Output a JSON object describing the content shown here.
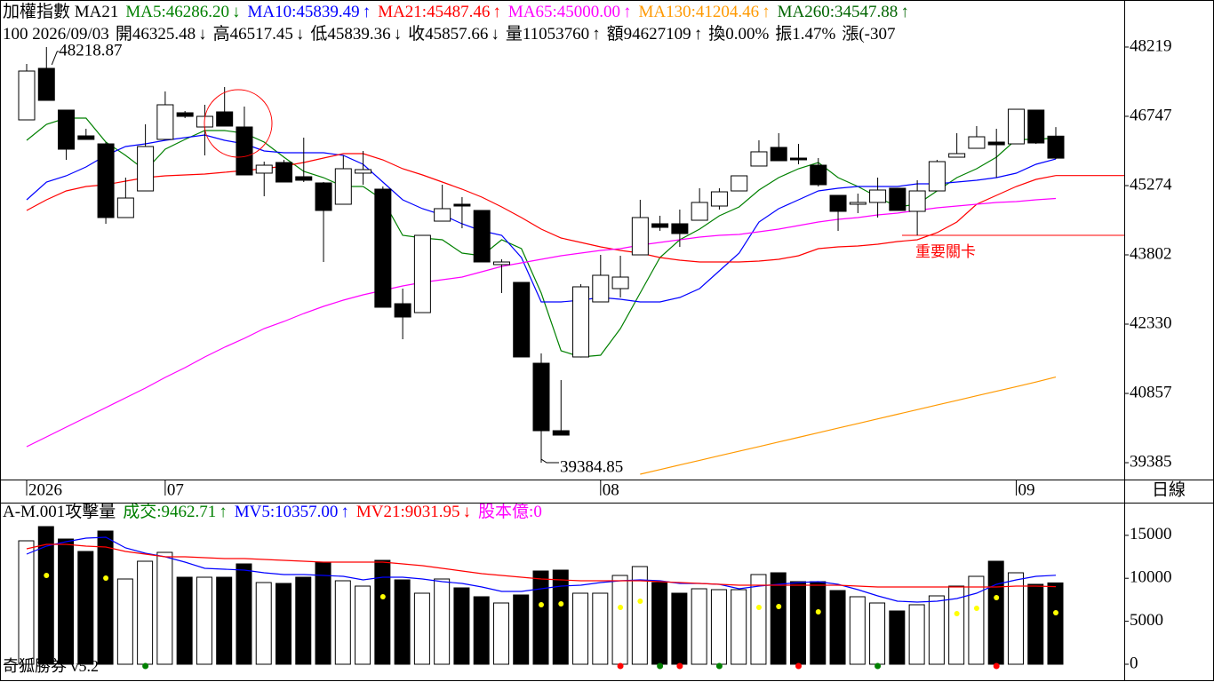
{
  "chart_data": [
    {
      "type": "candlestick",
      "title": "加權指數 MA21",
      "info": [
        {
          "text": "100 2026/09/03"
        },
        {
          "text": "開46325.48",
          "arrow": "↓"
        },
        {
          "text": "高46517.45",
          "arrow": "↓"
        },
        {
          "text": "低45839.36",
          "arrow": "↓"
        },
        {
          "text": "收45857.66",
          "arrow": "↓"
        },
        {
          "text": "量11053760",
          "arrow": "↑"
        },
        {
          "text": "額94627109",
          "arrow": "↑"
        },
        {
          "text": "換0.00%"
        },
        {
          "text": "振1.47%"
        },
        {
          "text": "漲(-307"
        }
      ],
      "categories": [
        "2026",
        null,
        null,
        null,
        null,
        null,
        null,
        "07",
        null,
        null,
        null,
        null,
        null,
        null,
        null,
        null,
        null,
        null,
        null,
        null,
        null,
        null,
        null,
        null,
        null,
        null,
        null,
        null,
        null,
        "08",
        null,
        null,
        null,
        null,
        null,
        null,
        null,
        null,
        null,
        null,
        null,
        null,
        null,
        null,
        null,
        null,
        null,
        null,
        null,
        null,
        "09",
        null,
        null
      ],
      "x_label": "日線",
      "open": [
        46671,
        47766,
        46879,
        46331,
        46161,
        44595,
        45161,
        46256,
        46822,
        46520,
        46841,
        46520,
        45539,
        45765,
        45463,
        45331,
        44878,
        45539,
        45199,
        42764,
        42575,
        44519,
        44878,
        44746,
        43595,
        43217,
        41499,
        40065,
        41632,
        42802,
        43085,
        43802,
        44463,
        44463,
        44538,
        44840,
        45161,
        45690,
        46086,
        45859,
        45708,
        45067,
        44878,
        44916,
        45218,
        44727,
        45161,
        45878,
        46067,
        46199,
        46161,
        46879,
        46325.48
      ],
      "high": [
        47860,
        48218.87,
        46879,
        46482,
        46199,
        45444,
        46577,
        47275,
        46860,
        46992,
        47369,
        46954,
        45784,
        45822,
        46293,
        45350,
        45916,
        46010,
        45255,
        43085,
        44217,
        45293,
        45029,
        44746,
        43708,
        43217,
        41707,
        41141,
        43179,
        43802,
        43783,
        44972,
        44633,
        44765,
        45218,
        45218,
        45482,
        46237,
        46388,
        46161,
        45859,
        45067,
        45104,
        45444,
        45218,
        45388,
        45822,
        46388,
        46539,
        46482,
        46897,
        46879,
        46517.45
      ],
      "low": [
        46671,
        47086,
        45822,
        46256,
        44463,
        44595,
        45161,
        46256,
        46709,
        45916,
        46539,
        45501,
        45048,
        45350,
        45350,
        43651,
        44878,
        45293,
        42689,
        42009,
        42575,
        44519,
        44368,
        43651,
        42991,
        41632,
        39384.85,
        39971,
        41632,
        42802,
        42896,
        43802,
        44312,
        43972,
        44538,
        44765,
        45161,
        45690,
        45803,
        45727,
        45255,
        44312,
        44689,
        44595,
        44746,
        44217,
        45161,
        45878,
        46067,
        45444,
        46161,
        46161,
        45839.36
      ],
      "close": [
        47709,
        47086,
        46048,
        46256,
        44595,
        45010,
        46105,
        46992,
        46746,
        46746,
        46539,
        45501,
        45708,
        45350,
        45388,
        44746,
        45633,
        45614,
        42689,
        42481,
        44217,
        44784,
        44840,
        43651,
        43651,
        41632,
        40065,
        39971,
        43123,
        43368,
        43330,
        44595,
        44387,
        44255,
        44916,
        45142,
        45482,
        45992,
        45803,
        45822,
        45293,
        44727,
        44916,
        45180,
        44746,
        45161,
        45784,
        45954,
        46312,
        46142,
        46897,
        46180,
        45857.66
      ],
      "up_color": "#ffffff",
      "down_color": "#000000",
      "series": [
        {
          "name": "MA5:46286.20",
          "arrow": "↓",
          "color": "#008000",
          "values": [
            46237,
            46577,
            46709,
            46709,
            46199,
            45916,
            45595,
            46048,
            46256,
            46444,
            46444,
            46388,
            46199,
            45878,
            45576,
            45444,
            45255,
            45255,
            44972,
            44217,
            44161,
            44123,
            43840,
            43783,
            44123,
            43934,
            42991,
            41764,
            41632,
            41669,
            42236,
            42991,
            43746,
            44123,
            44349,
            44633,
            44821,
            45180,
            45444,
            45633,
            45765,
            45444,
            45255,
            45029,
            44821,
            44878,
            45161,
            45444,
            45633,
            45878,
            46256,
            46256,
            46286.2
          ]
        },
        {
          "name": "MA10:45839.49",
          "arrow": "↑",
          "color": "#0000ff",
          "values": [
            44972,
            45350,
            45482,
            45671,
            45916,
            46105,
            46161,
            46237,
            46293,
            46350,
            46237,
            46161,
            46010,
            45973,
            45973,
            45973,
            45916,
            45727,
            45350,
            44972,
            44784,
            44651,
            44463,
            44312,
            44217,
            43746,
            42802,
            42802,
            42840,
            42896,
            42858,
            42802,
            42802,
            42896,
            43085,
            43462,
            43840,
            44500,
            44784,
            44972,
            45161,
            45218,
            45255,
            45255,
            45255,
            45312,
            45312,
            45350,
            45388,
            45444,
            45539,
            45727,
            45839.49
          ]
        },
        {
          "name": "MA21:45487.46",
          "arrow": "↑",
          "color": "#ff0000",
          "extend": true,
          "values": [
            44746,
            44972,
            45161,
            45255,
            45293,
            45369,
            45444,
            45482,
            45501,
            45520,
            45557,
            45595,
            45633,
            45690,
            45765,
            45859,
            45954,
            45954,
            45822,
            45633,
            45501,
            45350,
            45199,
            45029,
            44821,
            44595,
            44349,
            44161,
            44066,
            43972,
            43896,
            43840,
            43746,
            43689,
            43651,
            43651,
            43651,
            43670,
            43708,
            43783,
            43934,
            43972,
            43991,
            44029,
            44085,
            44123,
            44274,
            44500,
            44878,
            45067,
            45255,
            45406,
            45487.46
          ]
        },
        {
          "name": "MA65:45000.00",
          "arrow": "↑",
          "color": "#ff00ff",
          "values": [
            39725,
            39933,
            40141,
            40348,
            40556,
            40763,
            40971,
            41198,
            41405,
            41632,
            41839,
            42028,
            42236,
            42387,
            42556,
            42707,
            42840,
            42953,
            43047,
            43142,
            43217,
            43274,
            43330,
            43444,
            43557,
            43632,
            43708,
            43783,
            43840,
            43896,
            43934,
            44010,
            44066,
            44123,
            44180,
            44217,
            44236,
            44293,
            44349,
            44425,
            44500,
            44557,
            44595,
            44651,
            44689,
            44746,
            44802,
            44840,
            44878,
            44916,
            44935,
            44972,
            45000.0
          ]
        },
        {
          "name": "MA130:41204.46",
          "arrow": "↑",
          "color": "#ff9900",
          "values": [
            null,
            null,
            null,
            null,
            null,
            null,
            null,
            null,
            null,
            null,
            null,
            null,
            null,
            null,
            null,
            null,
            null,
            null,
            null,
            null,
            null,
            null,
            null,
            null,
            null,
            null,
            null,
            null,
            null,
            null,
            null,
            39140,
            39238,
            39336,
            39434,
            39532,
            39630,
            39728,
            39826,
            39924,
            40022,
            40120,
            40218,
            40316,
            40414,
            40512,
            40610,
            40708,
            40806,
            40904,
            41002,
            41100,
            41204.46
          ]
        },
        {
          "name": "MA260:34547.88",
          "arrow": "↑",
          "color": "#006400"
        }
      ],
      "annotations": [
        {
          "text": "重要關卡",
          "value": 44217,
          "color": "#ff0000"
        }
      ],
      "ylim": [
        39027,
        49219
      ],
      "yticks": [
        39385,
        40857,
        42330,
        43802,
        45274,
        46747,
        48219
      ]
    },
    {
      "type": "bar",
      "title": "A-M.001攻擊量",
      "name": "成交:9462.71",
      "arrow": "↑",
      "color": "#008000",
      "values": [
        14360,
        16013,
        14567,
        13120,
        15497,
        9918,
        11984,
        13017,
        10124,
        10124,
        10124,
        11674,
        9505,
        9401,
        10124,
        11881,
        9711,
        9091,
        12087,
        9814,
        8265,
        9918,
        8885,
        7852,
        7128,
        8058,
        10848,
        10951,
        8265,
        8265,
        10331,
        11364,
        9505,
        8265,
        8781,
        8678,
        8678,
        10434,
        10641,
        9608,
        9608,
        8575,
        7852,
        7128,
        6199,
        6922,
        7955,
        9091,
        10228,
        11984,
        10641,
        9298,
        9462.71
      ],
      "series": [
        {
          "name": "MV5:10357.00",
          "arrow": "↑",
          "color": "#0000ff",
          "values": [
            12810,
            13740,
            14257,
            14670,
            14773,
            13534,
            12914,
            12501,
            11881,
            11157,
            11054,
            10951,
            10641,
            10434,
            10434,
            10331,
            10228,
            9814,
            10124,
            10124,
            9918,
            9608,
            9401,
            8988,
            8471,
            8471,
            8781,
            9091,
            9195,
            9505,
            9711,
            9814,
            9711,
            9401,
            9401,
            9298,
            8781,
            9091,
            9298,
            9505,
            9608,
            9298,
            8678,
            7955,
            7335,
            7232,
            7335,
            7645,
            8265,
            9298,
            9814,
            10228,
            10357.0
          ]
        },
        {
          "name": "MV21:9031.95",
          "arrow": "↓",
          "color": "#ff0000",
          "values": [
            13430,
            13947,
            13947,
            13740,
            13637,
            13120,
            12810,
            12501,
            12501,
            12397,
            12294,
            12294,
            12191,
            12087,
            11984,
            11881,
            11881,
            11881,
            11881,
            11674,
            11467,
            11157,
            10848,
            10538,
            10331,
            10124,
            9918,
            9814,
            9711,
            9711,
            9711,
            9711,
            9608,
            9505,
            9401,
            9298,
            9195,
            9195,
            9195,
            9195,
            9195,
            9195,
            9091,
            8988,
            8988,
            8988,
            8988,
            8988,
            8988,
            8988,
            9091,
            9091,
            9031.95
          ]
        },
        {
          "name": "股本億:0",
          "color": "#ff00ff"
        }
      ],
      "markers": {
        "color": "#ffff00",
        "values": [
          null,
          10331,
          null,
          null,
          10021,
          null,
          null,
          null,
          null,
          null,
          null,
          null,
          null,
          null,
          null,
          null,
          null,
          null,
          7852,
          null,
          null,
          null,
          null,
          null,
          null,
          null,
          6922,
          7025,
          null,
          null,
          6612,
          7335,
          null,
          null,
          null,
          null,
          null,
          6612,
          6715,
          null,
          6095,
          null,
          null,
          null,
          null,
          null,
          null,
          5889,
          6509,
          7748,
          null,
          null,
          5992
        ]
      },
      "signals": [
        null,
        null,
        null,
        null,
        null,
        null,
        "#008000",
        null,
        null,
        null,
        null,
        null,
        null,
        null,
        null,
        null,
        null,
        null,
        null,
        null,
        null,
        null,
        null,
        null,
        null,
        null,
        null,
        null,
        null,
        null,
        "#ff0000",
        null,
        "#008000",
        "#ff0000",
        null,
        "#008000",
        null,
        null,
        null,
        "#ff0000",
        null,
        null,
        null,
        "#008000",
        null,
        null,
        null,
        null,
        null,
        "#ff0000",
        null,
        null,
        null
      ],
      "ylim": [
        0,
        18700
      ],
      "yticks": [
        0,
        5000,
        10000,
        15000
      ],
      "footer": "奇狐勝券 v5.2"
    }
  ]
}
